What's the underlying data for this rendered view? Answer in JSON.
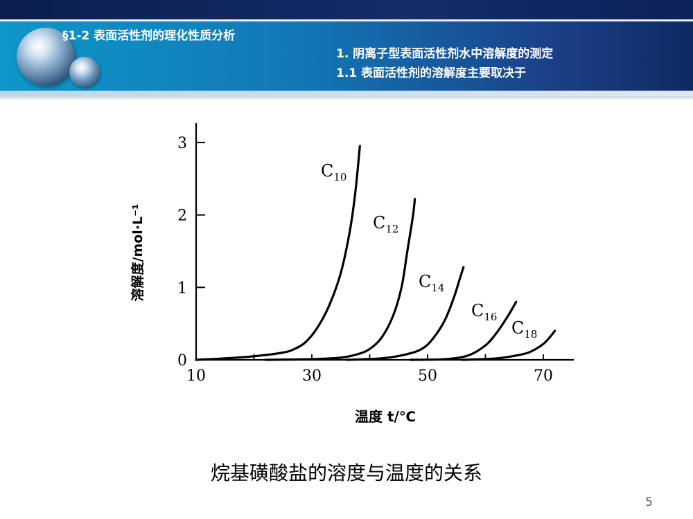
{
  "header": {
    "section": "§1-2  表面活性剂的理化性质分析",
    "line1": "1.  阴离子型表面活性剂水中溶解度的测定",
    "line2": "1.1  表面活性剂的溶解度主要取决于"
  },
  "chart_data": {
    "type": "line",
    "xlabel": "温度 t/℃",
    "ylabel": "溶解度/mol·L⁻¹",
    "x_ticks": [
      "10",
      "30",
      "50",
      "70"
    ],
    "y_ticks": [
      "0",
      "1",
      "2",
      "3"
    ],
    "xlim": [
      10,
      74
    ],
    "ylim": [
      0,
      3
    ],
    "grid": false,
    "series": [
      {
        "name": "C10",
        "name_base": "C",
        "name_sub": "10",
        "points": [
          [
            10,
            0
          ],
          [
            15,
            0.02
          ],
          [
            20,
            0.05
          ],
          [
            25,
            0.1
          ],
          [
            27,
            0.15
          ],
          [
            29,
            0.25
          ],
          [
            31,
            0.45
          ],
          [
            33,
            0.75
          ],
          [
            35,
            1.2
          ],
          [
            36.5,
            1.75
          ],
          [
            37.5,
            2.3
          ],
          [
            38.3,
            2.95
          ]
        ]
      },
      {
        "name": "C12",
        "name_base": "C",
        "name_sub": "12",
        "points": [
          [
            22,
            0
          ],
          [
            30,
            0.01
          ],
          [
            35,
            0.03
          ],
          [
            38,
            0.08
          ],
          [
            40,
            0.15
          ],
          [
            42,
            0.3
          ],
          [
            44,
            0.6
          ],
          [
            45.5,
            1.0
          ],
          [
            46.5,
            1.5
          ],
          [
            47.5,
            2.0
          ],
          [
            47.8,
            2.22
          ]
        ]
      },
      {
        "name": "C14",
        "name_base": "C",
        "name_sub": "14",
        "points": [
          [
            36,
            0
          ],
          [
            42,
            0.02
          ],
          [
            46,
            0.07
          ],
          [
            49,
            0.15
          ],
          [
            51,
            0.3
          ],
          [
            53,
            0.55
          ],
          [
            54.5,
            0.85
          ],
          [
            55.5,
            1.1
          ],
          [
            56.2,
            1.28
          ]
        ]
      },
      {
        "name": "C16",
        "name_base": "C",
        "name_sub": "16",
        "points": [
          [
            47,
            0
          ],
          [
            53,
            0.01
          ],
          [
            57,
            0.06
          ],
          [
            60,
            0.2
          ],
          [
            62,
            0.38
          ],
          [
            64,
            0.62
          ],
          [
            65.3,
            0.8
          ]
        ]
      },
      {
        "name": "C18",
        "name_base": "C",
        "name_sub": "18",
        "points": [
          [
            56,
            0
          ],
          [
            62,
            0.02
          ],
          [
            66,
            0.07
          ],
          [
            68,
            0.12
          ],
          [
            70,
            0.22
          ],
          [
            71.2,
            0.32
          ],
          [
            72,
            0.4
          ]
        ]
      }
    ]
  },
  "caption": "烷基磺酸盐的溶度与温度的关系",
  "page_number": "5"
}
